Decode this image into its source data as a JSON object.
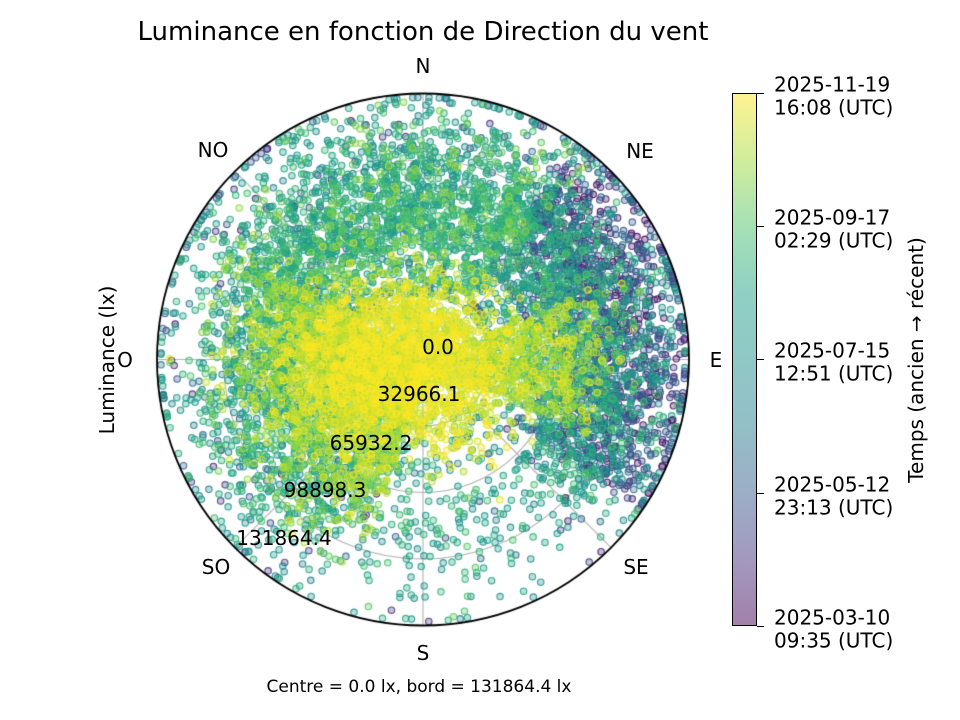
{
  "chart_data": {
    "type": "scatter",
    "projection": "polar",
    "title": "Luminance en fonction de Direction du vent",
    "caption": "Centre = 0.0 lx, bord = 131864.4 lx",
    "radial_axis": {
      "label": "Luminance (lx)",
      "unit": "lx",
      "range": [
        0.0,
        131864.4
      ],
      "ticks": [
        0.0,
        32966.1,
        65932.2,
        98898.3,
        131864.4
      ],
      "tick_labels": [
        "0.0",
        "32966.1",
        "65932.2",
        "98898.3",
        "131864.4"
      ]
    },
    "angular_axis": {
      "label": "Direction du vent",
      "zero_location": "N",
      "clockwise": true,
      "direction_labels": [
        "N",
        "NE",
        "E",
        "SE",
        "S",
        "SO",
        "O",
        "NO"
      ]
    },
    "colorbar": {
      "label": "Temps (ancien → récent)",
      "colormap": "viridis",
      "alpha": 0.5,
      "orientation": "vertical",
      "top_is_recent": true,
      "tick_labels": [
        {
          "line1": "2025-11-19",
          "line2": "16:08 (UTC)"
        },
        {
          "line1": "2025-09-17",
          "line2": "02:29 (UTC)"
        },
        {
          "line1": "2025-07-15",
          "line2": "12:51 (UTC)"
        },
        {
          "line1": "2025-05-12",
          "line2": "23:13 (UTC)"
        },
        {
          "line1": "2025-03-10",
          "line2": "09:35 (UTC)"
        }
      ]
    },
    "style": {
      "viridis_stops": [
        "#440154",
        "#46327e",
        "#365c8d",
        "#277f8e",
        "#21918c",
        "#1fa187",
        "#4ac16d",
        "#a0da39",
        "#fde725"
      ],
      "grid_color": "#b3b3b3",
      "spine_color": "#000000",
      "marker_radius_px": 3.2,
      "marker_fill_alpha": 0.3,
      "marker_edge_alpha": 0.85
    },
    "points": {
      "seed": 7,
      "total_approx": 11700,
      "clusters": [
        {
          "name": "recent-core",
          "n": 2600,
          "kind": "gauss_xy",
          "cx": -0.09,
          "cy": 0.02,
          "sx": 0.21,
          "sy": 0.15,
          "t": [
            0.88,
            1.0
          ]
        },
        {
          "name": "west-sw-halo",
          "n": 1500,
          "kind": "ring",
          "a": [
            195,
            300
          ],
          "rmu": 0.42,
          "rsig": 0.18,
          "rclip": [
            0.04,
            0.82
          ],
          "t": [
            0.72,
            0.95
          ]
        },
        {
          "name": "east-band",
          "n": 600,
          "kind": "ring",
          "a": [
            68,
            115
          ],
          "rmu": 0.42,
          "rsig": 0.16,
          "rclip": [
            0.1,
            0.8
          ],
          "t": [
            0.74,
            0.95
          ]
        },
        {
          "name": "main-ring",
          "n": 3900,
          "kind": "ring",
          "a": [
            0,
            360
          ],
          "rmu": 0.62,
          "rsig": 0.17,
          "rclip": [
            0.25,
            0.985
          ],
          "t": [
            0.45,
            0.75
          ],
          "thin": true
        },
        {
          "name": "north-green",
          "n": 1000,
          "kind": "ring",
          "a": [
            290,
            400
          ],
          "rmu": 0.6,
          "rsig": 0.18,
          "rclip": [
            0.3,
            0.97
          ],
          "t": [
            0.55,
            0.85
          ]
        },
        {
          "name": "east-old",
          "n": 1300,
          "kind": "ring",
          "a": [
            35,
            125
          ],
          "rmu": 0.74,
          "rsig": 0.15,
          "rclip": [
            0.42,
            0.985
          ],
          "t": [
            0.0,
            0.35
          ]
        },
        {
          "name": "sparse-old-mix",
          "n": 800,
          "kind": "ring",
          "a": [
            0,
            360
          ],
          "rmu": 0.7,
          "rsig": 0.25,
          "rclip": [
            0.28,
            0.985
          ],
          "t": [
            0.05,
            0.6
          ],
          "thin": true
        }
      ],
      "thin_rules": [
        {
          "a": [
            135,
            210
          ],
          "r": [
            0.45,
            1.0
          ],
          "keep": 0.3
        },
        {
          "a": [
            100,
            185
          ],
          "r": [
            0.2,
            0.5
          ],
          "keep": 0.45
        }
      ]
    }
  }
}
